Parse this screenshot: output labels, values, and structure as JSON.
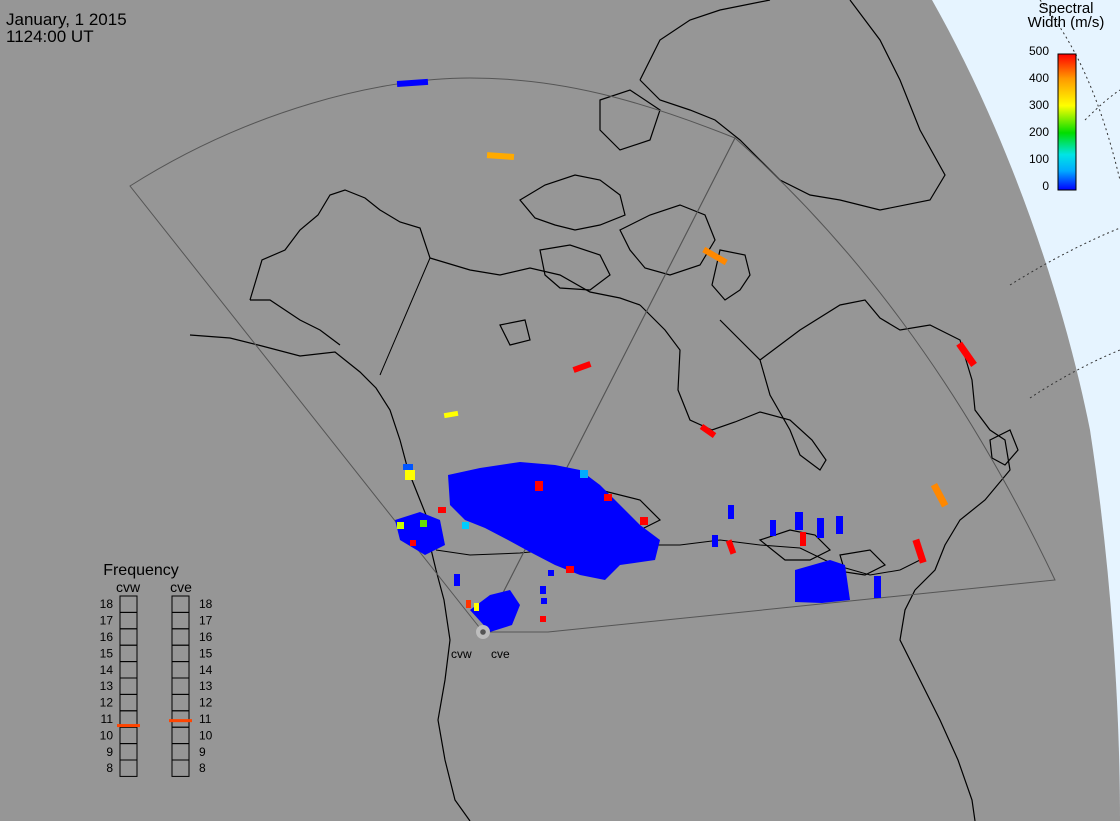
{
  "header": {
    "date": "January, 1 2015",
    "time": "1124:00 UT"
  },
  "colorbar": {
    "title_line1": "Spectral",
    "title_line2": "Width (m/s)",
    "ticks": [
      "500",
      "400",
      "300",
      "200",
      "100",
      "0"
    ],
    "stops": [
      "#ff0000",
      "#ff9900",
      "#ffff00",
      "#00dd00",
      "#00e5e5",
      "#00aaff",
      "#0000ff"
    ]
  },
  "frequency_panel": {
    "title": "Frequency",
    "radars": [
      {
        "code": "cvw",
        "value_mhz": 10.6
      },
      {
        "code": "cve",
        "value_mhz": 10.9
      }
    ],
    "scale": [
      "18",
      "17",
      "16",
      "15",
      "14",
      "13",
      "12",
      "11",
      "10",
      "9",
      "8"
    ]
  },
  "stations": [
    {
      "code": "cvw"
    },
    {
      "code": "cve"
    }
  ],
  "colors": {
    "land_ocean": "#969696",
    "sky": "#e6f4ff",
    "coastline": "#000000",
    "fov_outline": "#555555",
    "grid_dots": "#333333",
    "freq_marker": "#ff4400"
  }
}
